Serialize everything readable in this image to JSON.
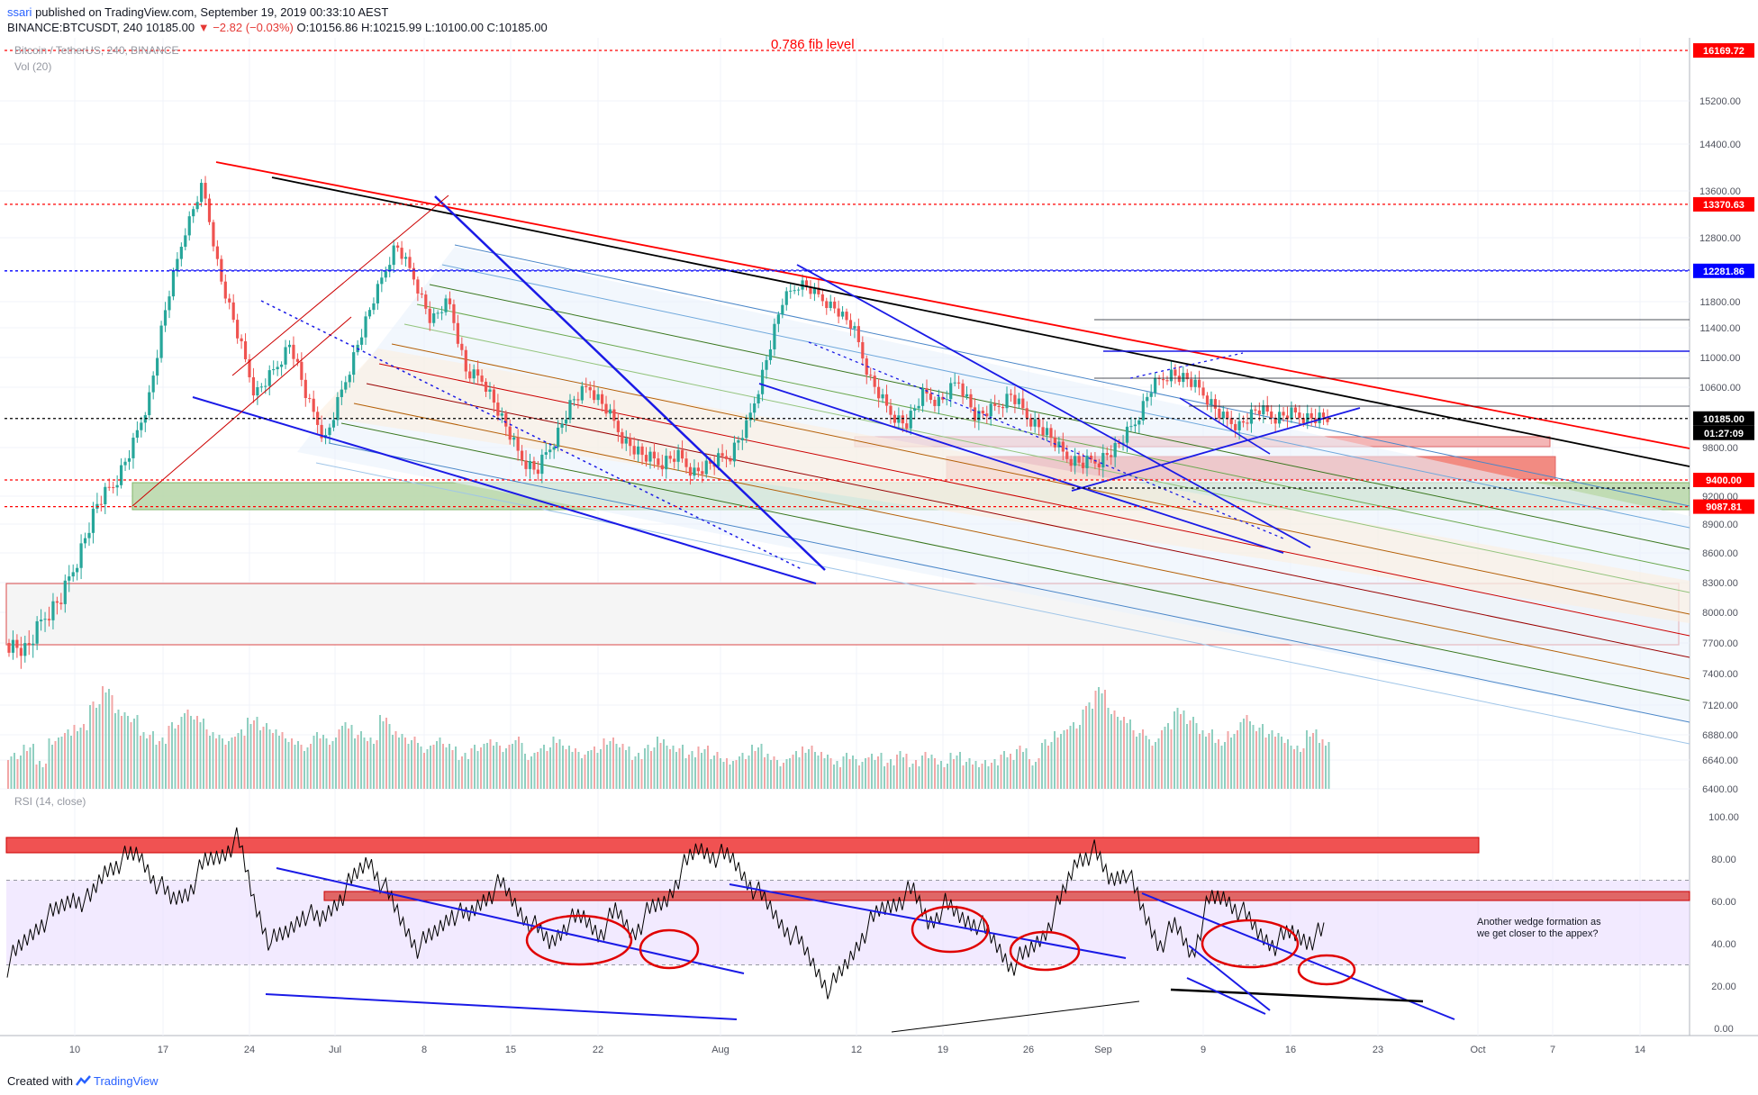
{
  "header": {
    "user": "ssari",
    "published": "published on TradingView.com, September 19, 2019 00:33:10 AEST",
    "symbol_line": "BINANCE:BTCUSDT, 240  10185.00",
    "change": "▼ −2.82 (−0.03%)",
    "ohlc": "O:10156.86 H:10215.99 L:10100.00 C:10185.00"
  },
  "legend": {
    "title": "Bitcoin / TetherUS, 240, BINANCE",
    "volume": "Vol (20)",
    "rsi": "RSI (14, close)"
  },
  "annotations": {
    "fib_label": "0.786 fib level",
    "wedge_note": [
      "Another wedge formation as",
      "we get closer to the appex?"
    ]
  },
  "footer": {
    "created": "Created with",
    "brand": "TradingView"
  },
  "chart_data": {
    "type": "candlestick",
    "symbol": "BTCUSDT",
    "exchange": "BINANCE",
    "timeframe": "240",
    "last_price": 10185.0,
    "countdown": "01:27:09",
    "y_ticks": [
      6400,
      6640,
      6880,
      7120,
      7400,
      7700,
      8000,
      8300,
      8600,
      8900,
      9200,
      9800,
      10600,
      11000,
      11400,
      11800,
      12800,
      13600,
      14400,
      15200
    ],
    "y_tick_labels": [
      "6400.00",
      "6640.00",
      "6880.00",
      "7120.00",
      "7400.00",
      "7700.00",
      "8000.00",
      "8300.00",
      "8600.00",
      "8900.00",
      "9200.00",
      "9800.00",
      "10600.00",
      "11000.00",
      "11400.00",
      "11800.00",
      "12800.00",
      "13600.00",
      "14400.00",
      "15200.00"
    ],
    "x_tick_labels": [
      "10",
      "17",
      "24",
      "Jul",
      "8",
      "15",
      "22",
      "Aug",
      "12",
      "19",
      "26",
      "Sep",
      "9",
      "16",
      "23",
      "Oct",
      "7",
      "14"
    ],
    "price_levels": [
      {
        "value": 16169.72,
        "label": "16169.72",
        "color": "#ff0000",
        "style": "dotted"
      },
      {
        "value": 13370.63,
        "label": "13370.63",
        "color": "#ff0000",
        "style": "dotted"
      },
      {
        "value": 12281.86,
        "label": "12281.86",
        "color": "#0000ff",
        "style": "dotted"
      },
      {
        "value": 10185.0,
        "label": "10185.00",
        "color": "#000000",
        "style": "dotted"
      },
      {
        "value": 9400.0,
        "label": "9400.00",
        "color": "#ff0000",
        "style": "dotted"
      },
      {
        "value": 9087.81,
        "label": "9087.81",
        "color": "#ff0000",
        "style": "dotted"
      }
    ],
    "close_path": [
      7700,
      7620,
      7950,
      8150,
      8600,
      9100,
      9350,
      9800,
      10500,
      11800,
      12900,
      13700,
      12200,
      11300,
      10500,
      10800,
      11200,
      10400,
      9900,
      10600,
      11300,
      12000,
      12700,
      12200,
      11500,
      11800,
      10800,
      10700,
      10200,
      9700,
      9500,
      9900,
      10400,
      10600,
      10300,
      9900,
      9700,
      9600,
      9700,
      9500,
      9600,
      9700,
      10100,
      10900,
      11800,
      12100,
      11900,
      11700,
      11400,
      10700,
      10300,
      10100,
      10500,
      10400,
      10700,
      10200,
      10300,
      10500,
      10200,
      10000,
      9700,
      9600,
      9650,
      9800,
      10100,
      10600,
      10800,
      10700,
      10500,
      10200,
      10100,
      10300,
      10200,
      10250,
      10200,
      10185
    ],
    "volume_scale": [
      3,
      4,
      2,
      5,
      6,
      7,
      10,
      12,
      9,
      8,
      6,
      5,
      7,
      9,
      8,
      6,
      5,
      6,
      8,
      7,
      6,
      5,
      4,
      6,
      5,
      7,
      6,
      5,
      8,
      6,
      5,
      4,
      5,
      4,
      3,
      4,
      5,
      4,
      5,
      3,
      4,
      5,
      4,
      3,
      4,
      5,
      4,
      3,
      4,
      5,
      4,
      3,
      4,
      3,
      2,
      3,
      4,
      3,
      2,
      3,
      4,
      3,
      2,
      3,
      2,
      3,
      2,
      3,
      2,
      3,
      2,
      3,
      2,
      2,
      2
    ],
    "rsi_path": [
      30,
      40,
      50,
      55,
      62,
      60,
      75,
      80,
      82,
      70,
      60,
      65,
      78,
      82,
      90,
      60,
      40,
      45,
      55,
      50,
      60,
      70,
      80,
      65,
      50,
      38,
      45,
      55,
      52,
      62,
      68,
      57,
      48,
      40,
      50,
      52,
      45,
      55,
      45,
      55,
      60,
      75,
      85,
      82,
      80,
      70,
      60,
      50,
      42,
      30,
      18,
      30,
      45,
      55,
      60,
      65,
      50,
      58,
      52,
      50,
      40,
      30,
      35,
      45,
      60,
      80,
      84,
      70,
      75,
      55,
      40,
      48,
      35,
      60,
      62,
      55,
      45,
      40,
      45,
      42,
      45
    ],
    "rsi_ticks": [
      0,
      20,
      40,
      60,
      80,
      100
    ],
    "rsi_tick_labels": [
      "0.00",
      "20.00",
      "40.00",
      "60.00",
      "80.00",
      "100.00"
    ]
  }
}
